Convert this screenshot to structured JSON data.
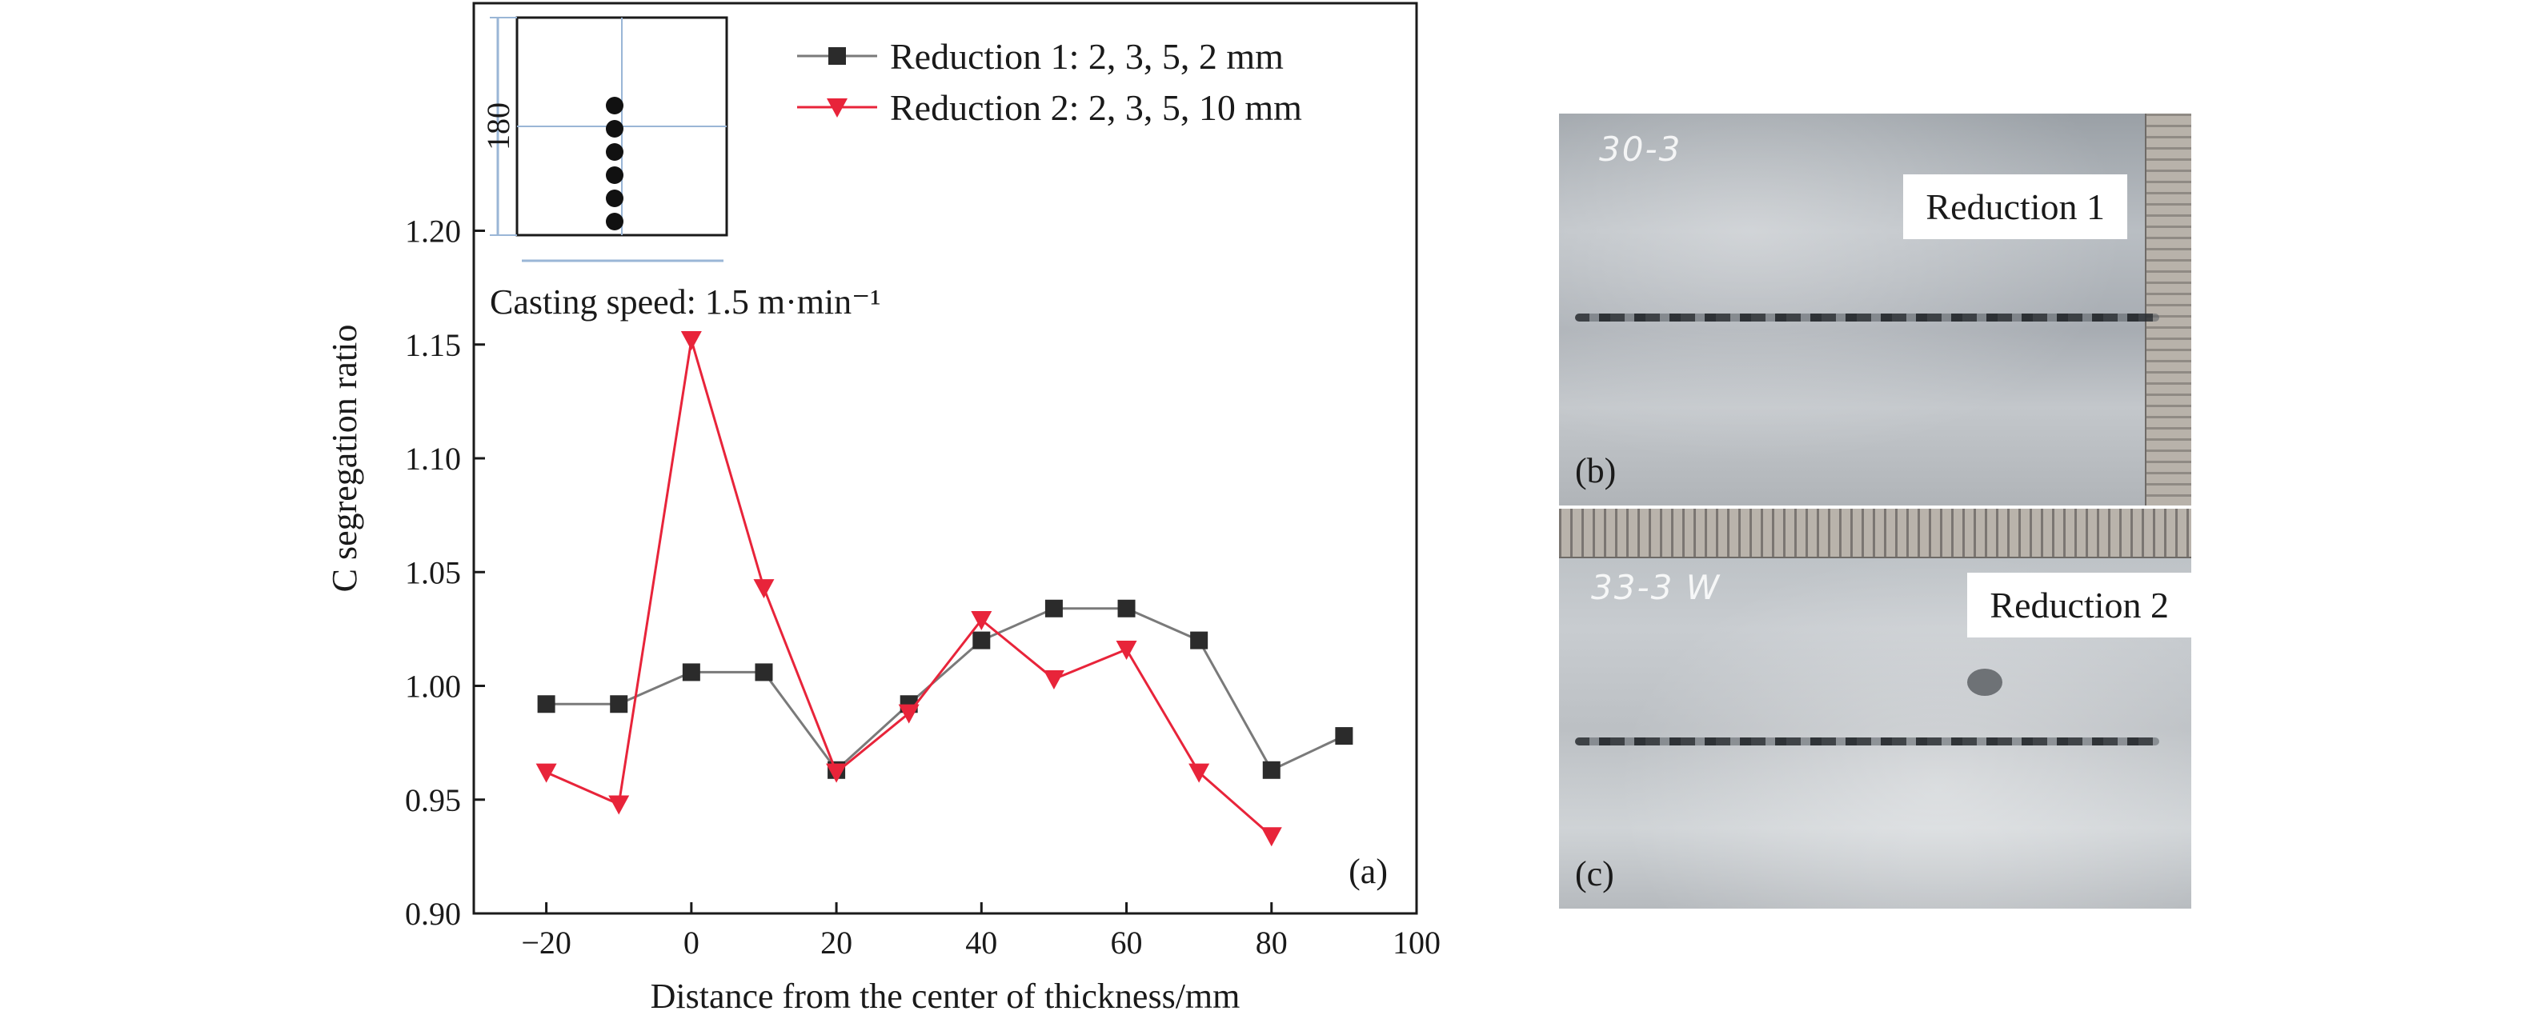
{
  "chart_data": {
    "type": "line",
    "xlabel": "Distance from the center of thickness/mm",
    "ylabel": "C segregation ratio",
    "xlim": [
      -30,
      100
    ],
    "ylim": [
      0.9,
      1.3
    ],
    "xticks": [
      "-20",
      "0",
      "20",
      "40",
      "60",
      "80",
      "100"
    ],
    "yticks": [
      "0.90",
      "0.95",
      "1.00",
      "1.05",
      "1.10",
      "1.15",
      "1.20"
    ],
    "grid": false,
    "legend_position": "top",
    "annotation": "Casting speed: 1.5 m·min⁻¹",
    "panel_label": "(a)",
    "inset": {
      "dimension_label": "180",
      "sample_points": 6
    },
    "series": [
      {
        "name": "Reduction 1: 2, 3, 5, 2 mm",
        "marker": "square",
        "color": "#2b2b2b",
        "line_color": "#7a7a7a",
        "x": [
          -20,
          -10,
          0,
          10,
          20,
          30,
          40,
          50,
          60,
          70,
          80,
          90
        ],
        "y": [
          0.992,
          0.992,
          1.006,
          1.006,
          0.963,
          0.992,
          1.02,
          1.034,
          1.034,
          1.02,
          0.963,
          0.978
        ]
      },
      {
        "name": "Reduction 2: 2, 3, 5, 10 mm",
        "marker": "triangle-down",
        "color": "#e8243a",
        "line_color": "#e8243a",
        "x": [
          -20,
          -10,
          0,
          10,
          20,
          30,
          40,
          50,
          60,
          70,
          80
        ],
        "y": [
          0.962,
          0.948,
          1.152,
          1.043,
          0.962,
          0.988,
          1.029,
          1.003,
          1.016,
          0.962,
          0.934
        ]
      }
    ]
  },
  "photos": {
    "b": {
      "label": "Reduction 1",
      "tag": "(b)",
      "handwriting": "30-3"
    },
    "c": {
      "label": "Reduction 2",
      "tag": "(c)",
      "handwriting": "33-3 W"
    }
  }
}
